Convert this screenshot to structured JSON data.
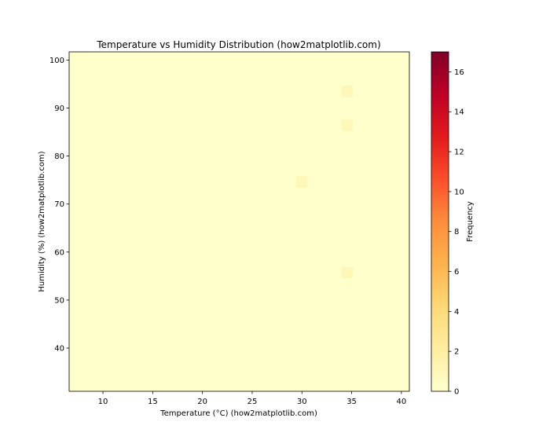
{
  "chart_data": {
    "type": "heatmap",
    "title": "Temperature vs Humidity Distribution (how2matplotlib.com)",
    "xlabel": "Temperature (°C) (how2matplotlib.com)",
    "ylabel": "Humidity (%) (how2matplotlib.com)",
    "xlim": [
      6.6,
      40.8
    ],
    "ylim": [
      31.0,
      101.7
    ],
    "xticks": [
      "10",
      "15",
      "20",
      "25",
      "30",
      "35",
      "40"
    ],
    "yticks": [
      "40",
      "50",
      "60",
      "70",
      "80",
      "90",
      "100"
    ],
    "bins": [
      30,
      30
    ],
    "colormap": "YlOrRd",
    "grid": false,
    "colorbar": {
      "label": "Frequency",
      "range": [
        0,
        17
      ],
      "ticks": [
        "0",
        "2",
        "4",
        "6",
        "8",
        "10",
        "12",
        "14",
        "16"
      ]
    },
    "counts_rows_top_to_bottom": [
      "000000000000000000000000000000",
      "000000000000000000000000000000",
      "000000000000000000000000000000",
      "000000000000000000000000100000",
      "000000000000000000000000000000",
      "000000000000000000000000000000",
      "000000000000000000000000100000",
      "000000000000000000000000000000",
      "000000000000000000000000000000",
      "000000000000000000000000000000",
      "000000000000000000000000000000",
      "000000000000000000001000000000",
      "000000000000000000000000000000",
      "000000000000000000000000000000",
      "000000000000000000000000000000",
      "000000000000000000000000000000",
      "000000000000000000000000000000",
      "000000000000000000000000000000",
      "000000000000000000000000000000",
      "000000000000000000000000100000",
      "000000000000000000000000000000",
      "000000000000000000000000000000",
      "000000000000000000000000000000",
      "000000000000000000000000000000",
      "000000000000000000000000000000",
      "000000000000000000000000000000",
      "000000000000000000000000000000",
      "000000000000000000000000000000",
      "000000000000000000000000000000",
      "000000000000000000000000000000"
    ]
  }
}
